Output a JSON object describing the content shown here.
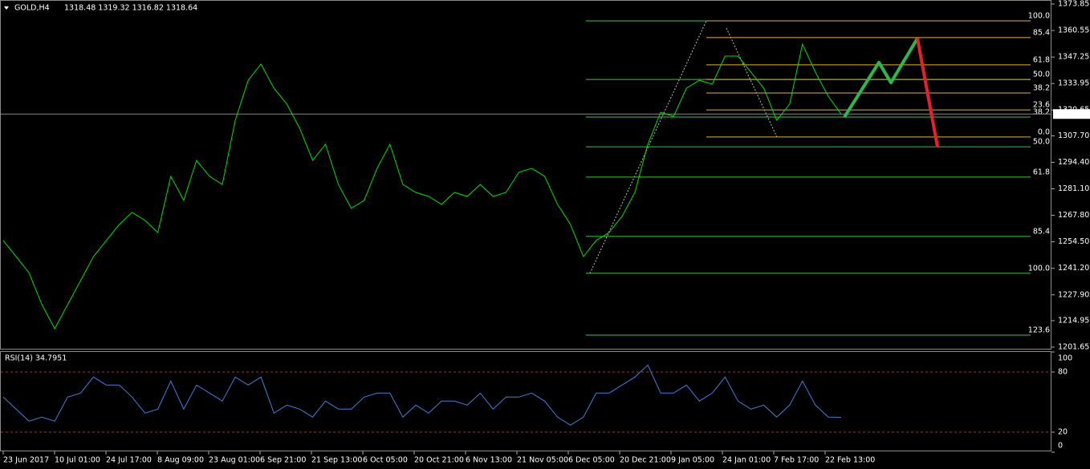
{
  "chart_data": [
    {
      "type": "line",
      "title": "GOLD,H4",
      "ohlc": "1318.48 1319.32 1316.82 1318.64",
      "color": "#00e000",
      "values": [
        1255.2,
        1247.1,
        1239.0,
        1223.0,
        1210.9,
        1223.0,
        1235.0,
        1247.1,
        1255.2,
        1263.2,
        1269.3,
        1265.2,
        1259.2,
        1287.4,
        1275.3,
        1295.4,
        1287.4,
        1283.3,
        1315.5,
        1335.6,
        1343.7,
        1331.6,
        1323.6,
        1311.5,
        1295.4,
        1303.5,
        1283.3,
        1271.3,
        1275.3,
        1291.4,
        1303.5,
        1283.3,
        1279.3,
        1277.3,
        1273.3,
        1279.3,
        1277.3,
        1283.3,
        1277.3,
        1279.3,
        1289.4,
        1291.4,
        1287.4,
        1273.3,
        1263.2,
        1247.1,
        1255.2,
        1259.2,
        1267.3,
        1279.3,
        1303.5,
        1319.5,
        1317.5,
        1331.6,
        1335.6,
        1333.6,
        1347.7,
        1347.7,
        1339.6,
        1331.6,
        1315.5,
        1323.6,
        1353.7,
        1339.6,
        1327.6,
        1318.6
      ],
      "ylim": [
        1201.65,
        1373.85
      ],
      "yticks": [
        1373.85,
        1360.55,
        1347.25,
        1333.95,
        1320.65,
        {
          "value": 1307.7,
          "label": "1307.70"
        },
        {
          "value": 1294.4,
          "label": "1294.40"
        },
        {
          "value": 1281.1,
          "label": "1281.10"
        },
        {
          "value": 1267.8,
          "label": "1267.80"
        },
        {
          "value": 1254.5,
          "label": "1254.50"
        },
        {
          "value": 1241.2,
          "label": "1241.20"
        },
        {
          "value": 1227.9,
          "label": "1227.90"
        },
        1214.95,
        1201.65
      ],
      "current_price": 1318.64,
      "time_labels": [
        "23 Jun 2017",
        "10 Jul 01:00",
        "24 Jul 17:00",
        "8 Aug 09:00",
        "23 Aug 01:00",
        "6 Sep 21:00",
        "21 Sep 13:00",
        "6 Oct 05:00",
        "20 Oct 21:00",
        "6 Nov 13:00",
        "21 Nov 05:00",
        "6 Dec 05:00",
        "20 Dec 21:00",
        "9 Jan 05:00",
        "24 Jan 01:00",
        "7 Feb 17:00",
        "22 Feb 13:00"
      ],
      "fib_sets": [
        {
          "color": "#32cd32",
          "levels": [
            {
              "price": 1365.4
            },
            {
              "price": 1336.0
            },
            {
              "price": 1317.1,
              "label": "38.2"
            },
            {
              "price": 1302.2,
              "label": "50.0"
            },
            {
              "price": 1287.0,
              "label": "61.8"
            },
            {
              "price": 1257.2,
              "label": "85.4"
            },
            {
              "price": 1238.7,
              "label": "100.0"
            },
            {
              "price": 1207.7,
              "label": "123.6"
            }
          ]
        },
        {
          "color": "#e6b422",
          "levels": [
            {
              "price": 1365.4,
              "label": "100.0"
            },
            {
              "price": 1357.0,
              "label": "85.4"
            },
            {
              "price": 1343.3,
              "label": "61.8"
            },
            {
              "price": 1336.0,
              "label": "50.0"
            },
            {
              "price": 1329.2,
              "label": "38.2"
            },
            {
              "price": 1320.7,
              "label": "23.6"
            },
            {
              "price": 1307.1,
              "label": "0.0"
            }
          ]
        }
      ],
      "projection": [
        {
          "color": "#2fb84a",
          "values": [
            1317.1,
            1344.5,
            1334.4,
            1356.6
          ]
        },
        {
          "color": "#e8202a",
          "values": [
            1356.6,
            1302.2
          ]
        }
      ]
    },
    {
      "type": "line",
      "title": "RSI(14) 34.7951",
      "color": "#3d7fe0",
      "values": [
        55,
        43,
        31,
        35,
        31,
        55,
        59,
        75,
        67,
        67,
        55,
        39,
        43,
        71,
        43,
        67,
        59,
        51,
        75,
        67,
        75,
        39,
        47,
        43,
        35,
        51,
        43,
        43,
        55,
        59,
        59,
        35,
        47,
        39,
        51,
        51,
        47,
        59,
        43,
        55,
        55,
        59,
        51,
        35,
        27,
        35,
        59,
        59,
        67,
        75,
        87,
        59,
        59,
        67,
        51,
        59,
        75,
        51,
        43,
        47,
        35,
        47,
        71,
        47,
        35,
        34.8
      ],
      "ylim": [
        0,
        100
      ],
      "yticks": [
        0,
        20,
        80,
        100
      ]
    }
  ]
}
